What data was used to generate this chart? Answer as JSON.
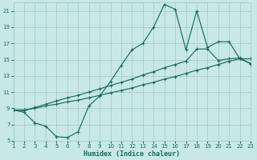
{
  "xlabel": "Humidex (Indice chaleur)",
  "bg_color": "#c8e8e8",
  "grid_color": "#a8cccc",
  "line_color": "#1a6b5a",
  "xlim": [
    1,
    23
  ],
  "ylim": [
    5,
    22
  ],
  "xticks": [
    1,
    2,
    3,
    4,
    5,
    6,
    7,
    8,
    9,
    10,
    11,
    12,
    13,
    14,
    15,
    16,
    17,
    18,
    19,
    20,
    21,
    22,
    23
  ],
  "yticks": [
    5,
    7,
    9,
    11,
    13,
    15,
    17,
    19,
    21
  ],
  "line1_x": [
    1,
    2,
    3,
    4,
    5,
    6,
    7,
    8,
    9,
    10,
    11,
    12,
    13,
    14,
    15,
    16,
    17,
    18,
    19,
    20,
    21,
    22,
    23
  ],
  "line1_y": [
    8.8,
    8.8,
    9.0,
    9.3,
    9.5,
    9.8,
    10.0,
    10.3,
    10.6,
    10.9,
    11.2,
    11.5,
    11.9,
    12.2,
    12.6,
    12.9,
    13.3,
    13.7,
    14.0,
    14.4,
    14.8,
    15.1,
    15.1
  ],
  "line2_x": [
    1,
    2,
    3,
    4,
    5,
    6,
    7,
    8,
    9,
    10,
    11,
    12,
    13,
    14,
    15,
    16,
    17,
    18,
    19,
    20,
    21,
    22,
    23
  ],
  "line2_y": [
    8.8,
    8.7,
    9.1,
    9.5,
    9.9,
    10.3,
    10.6,
    11.0,
    11.4,
    11.8,
    12.2,
    12.6,
    13.1,
    13.5,
    14.0,
    14.4,
    14.8,
    16.3,
    16.3,
    14.9,
    15.1,
    15.2,
    14.5
  ],
  "line3_x": [
    1,
    2,
    3,
    4,
    5,
    6,
    7,
    8,
    9,
    10,
    11,
    12,
    13,
    14,
    15,
    16,
    17,
    18,
    19,
    20,
    21,
    22,
    23
  ],
  "line3_y": [
    8.8,
    8.5,
    7.2,
    6.8,
    5.5,
    5.4,
    6.1,
    9.3,
    10.5,
    12.3,
    14.3,
    16.2,
    17.0,
    19.0,
    21.8,
    21.2,
    16.2,
    21.0,
    16.5,
    17.2,
    17.2,
    15.1,
    14.5
  ]
}
